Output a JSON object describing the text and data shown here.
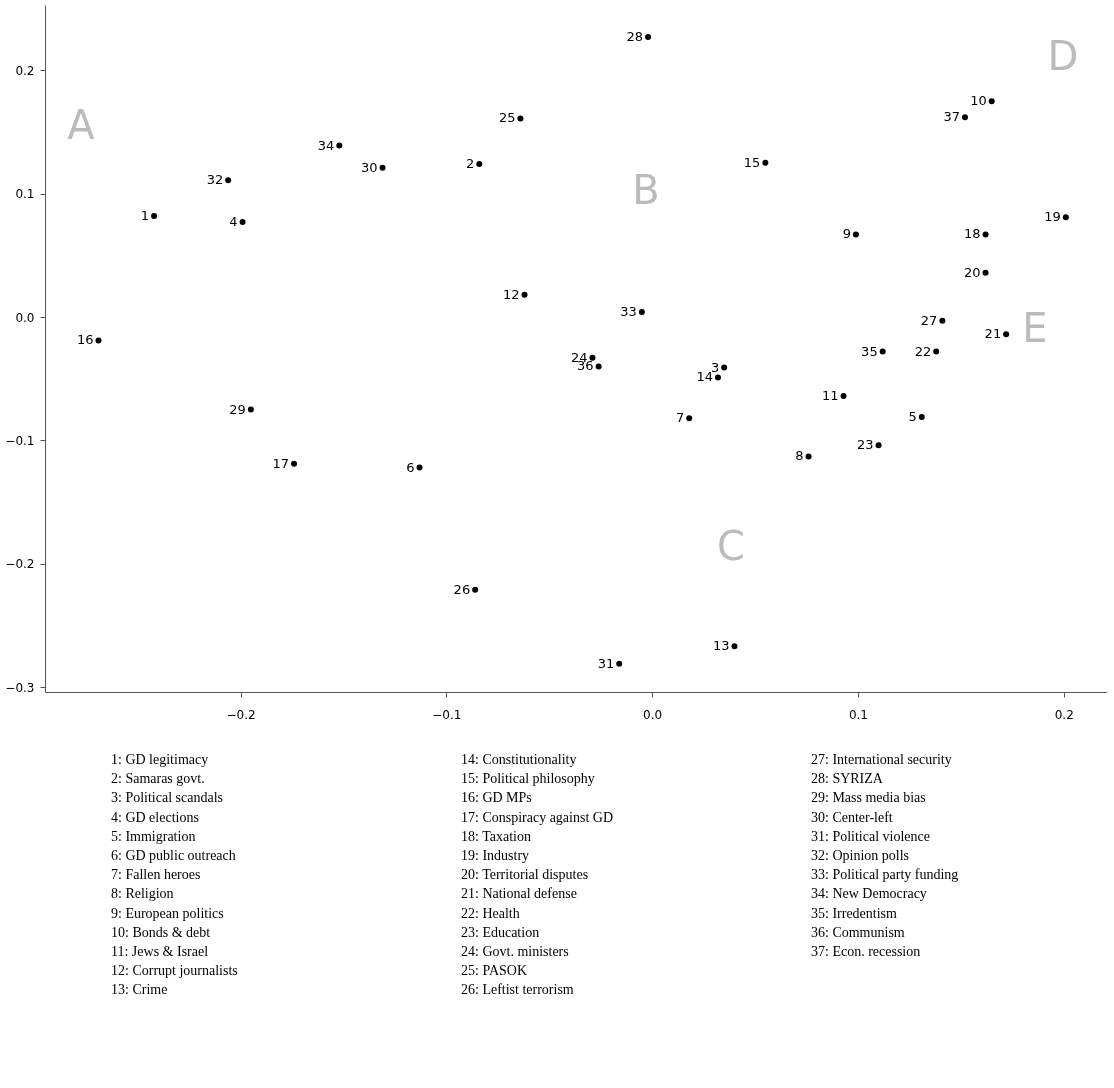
{
  "chart_data": {
    "type": "scatter",
    "grid": false,
    "series": [
      {
        "color": "#000000",
        "x": [
          -0.242,
          -0.084,
          0.035,
          -0.199,
          0.131,
          -0.113,
          0.018,
          0.076,
          0.099,
          0.165,
          0.093,
          -0.062,
          0.04,
          0.032,
          0.055,
          -0.269,
          -0.174,
          0.162,
          0.201,
          0.162,
          0.172,
          0.138,
          0.11,
          -0.029,
          -0.064,
          -0.086,
          0.141,
          -0.002,
          -0.195,
          -0.131,
          -0.016,
          -0.206,
          -0.005,
          -0.152,
          0.112,
          -0.026,
          0.152
        ],
        "values": [
          0.082,
          0.124,
          -0.041,
          0.077,
          -0.081,
          -0.122,
          -0.082,
          -0.113,
          0.067,
          0.175,
          -0.064,
          0.018,
          -0.267,
          -0.049,
          0.125,
          -0.019,
          -0.119,
          0.067,
          0.081,
          0.036,
          -0.014,
          -0.028,
          -0.104,
          -0.033,
          0.161,
          -0.221,
          -0.003,
          0.227,
          -0.075,
          0.121,
          -0.281,
          0.111,
          0.004,
          0.139,
          -0.028,
          -0.04,
          0.162
        ]
      }
    ],
    "xlim": [
      -0.295,
      0.221
    ],
    "ylim": [
      -0.304,
      0.253
    ],
    "xticks": [
      {
        "value": -0.2,
        "label": "−0.2"
      },
      {
        "value": -0.1,
        "label": "−0.1"
      },
      {
        "value": 0,
        "label": "0.0"
      },
      {
        "value": 0.1,
        "label": "0.1"
      },
      {
        "value": 0.2,
        "label": "0.2"
      }
    ],
    "yticks": [
      {
        "value": -0.3,
        "label": "−0.3"
      },
      {
        "value": -0.2,
        "label": "−0.2"
      },
      {
        "value": -0.1,
        "label": "−0.1"
      },
      {
        "value": 0,
        "label": "0.0"
      },
      {
        "value": 0.1,
        "label": "0.1"
      },
      {
        "value": 0.2,
        "label": "0.2"
      }
    ],
    "annotations": [
      "A",
      "B",
      "C",
      "D",
      "E",
      {
        "text": "1",
        "x": -0.242,
        "y": 0.082
      },
      {
        "text": "2",
        "x": -0.084,
        "y": 0.124
      },
      {
        "text": "3",
        "x": 0.035,
        "y": -0.041
      },
      {
        "text": "4",
        "x": -0.199,
        "y": 0.077
      },
      {
        "text": "5",
        "x": 0.131,
        "y": -0.081
      },
      {
        "text": "6",
        "x": -0.113,
        "y": -0.122
      },
      {
        "text": "7",
        "x": 0.018,
        "y": -0.082
      },
      {
        "text": "8",
        "x": 0.076,
        "y": -0.113
      },
      {
        "text": "9",
        "x": 0.099,
        "y": 0.067
      },
      {
        "text": "10",
        "x": 0.165,
        "y": 0.175
      },
      {
        "text": "11",
        "x": 0.093,
        "y": -0.064
      },
      {
        "text": "12",
        "x": -0.062,
        "y": 0.018
      },
      {
        "text": "13",
        "x": 0.04,
        "y": -0.267
      },
      {
        "text": "14",
        "x": 0.032,
        "y": -0.049
      },
      {
        "text": "15",
        "x": 0.055,
        "y": 0.125
      },
      {
        "text": "16",
        "x": -0.269,
        "y": -0.019
      },
      {
        "text": "17",
        "x": -0.174,
        "y": -0.119
      },
      {
        "text": "18",
        "x": 0.162,
        "y": 0.067
      },
      {
        "text": "19",
        "x": 0.201,
        "y": 0.081
      },
      {
        "text": "20",
        "x": 0.162,
        "y": 0.036
      },
      {
        "text": "21",
        "x": 0.172,
        "y": -0.014
      },
      {
        "text": "22",
        "x": 0.138,
        "y": -0.028
      },
      {
        "text": "23",
        "x": 0.11,
        "y": -0.104
      },
      {
        "text": "24",
        "x": -0.029,
        "y": -0.033
      },
      {
        "text": "25",
        "x": -0.064,
        "y": 0.161
      },
      {
        "text": "26",
        "x": -0.086,
        "y": -0.221
      },
      {
        "text": "27",
        "x": 0.141,
        "y": -0.003
      },
      {
        "text": "28",
        "x": -0.002,
        "y": 0.227
      },
      {
        "text": "29",
        "x": -0.195,
        "y": -0.075
      },
      {
        "text": "30",
        "x": -0.131,
        "y": 0.121
      },
      {
        "text": "31",
        "x": -0.016,
        "y": -0.281
      },
      {
        "text": "32",
        "x": -0.206,
        "y": 0.111
      },
      {
        "text": "33",
        "x": -0.005,
        "y": 0.004
      },
      {
        "text": "34",
        "x": -0.152,
        "y": 0.139
      },
      {
        "text": "35",
        "x": 0.112,
        "y": -0.028
      },
      {
        "text": "36",
        "x": -0.026,
        "y": -0.04
      },
      {
        "text": "37",
        "x": 0.152,
        "y": 0.162
      },
      "1: GD legitimacy",
      "2: Samaras govt.",
      "3: Political scandals",
      "4: GD elections",
      "5: Immigration",
      "6: GD public outreach",
      "7: Fallen heroes",
      "8: Religion",
      "9: European politics",
      "10: Bonds & debt",
      "11: Jews & Israel",
      "12: Corrupt journalists",
      "13: Crime",
      "14: Constitutionality",
      "15: Political philosophy",
      "16: GD MPs",
      "17: Conspiracy against GD",
      "18: Taxation",
      "19: Industry",
      "20: Territorial disputes",
      "21: National defense",
      "22: Health",
      "23: Education",
      "24: Govt. ministers",
      "25: PASOK",
      "26: Leftist terrorism",
      "27: International security",
      "28: SYRIZA",
      "29: Mass media bias",
      "30: Center-left",
      "31: Political violence",
      "32: Opinion polls",
      "33: Political party funding",
      "34: New Democracy",
      "35: Irredentism",
      "36: Communism",
      "37: Econ. recession"
    ]
  }
}
